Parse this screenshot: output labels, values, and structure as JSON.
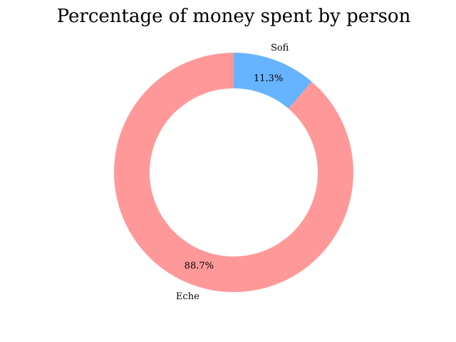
{
  "chart_data": {
    "type": "pie",
    "donut": true,
    "title": "Percentage of money spent by person",
    "slices": [
      {
        "label": "Sofi",
        "value": 11.3,
        "pct_label": "11.3%",
        "color": "#66b3ff"
      },
      {
        "label": "Eche",
        "value": 88.7,
        "pct_label": "88.7%",
        "color": "#ff9999"
      }
    ],
    "start_angle_deg": 90,
    "direction": "clockwise"
  }
}
